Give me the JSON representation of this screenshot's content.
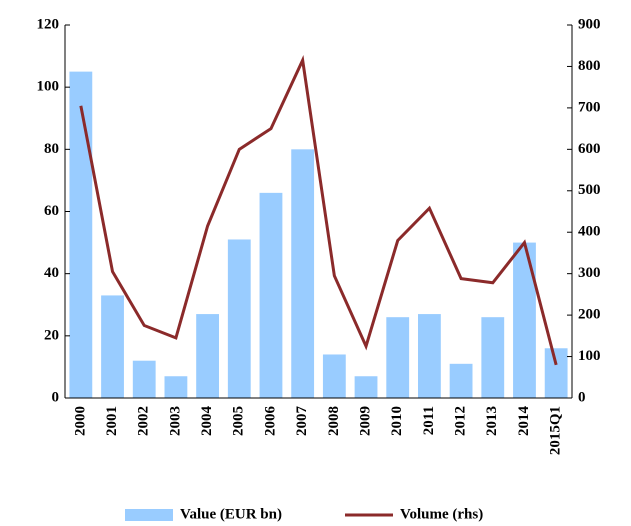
{
  "chart_data": {
    "type": "bar",
    "categories": [
      "2000",
      "2001",
      "2002",
      "2003",
      "2004",
      "2005",
      "2006",
      "2007",
      "2008",
      "2009",
      "2010",
      "2011",
      "2012",
      "2013",
      "2014",
      "2015Q1"
    ],
    "series": [
      {
        "name": "Value (EUR bn)",
        "type": "bar",
        "color": "#99ccff",
        "values": [
          105,
          33,
          12,
          7,
          27,
          51,
          66,
          80,
          14,
          7,
          26,
          27,
          11,
          26,
          50,
          16
        ]
      },
      {
        "name": "Volume (rhs)",
        "type": "line",
        "axis": "y2",
        "color": "#8b2a2a",
        "values": [
          705,
          305,
          175,
          145,
          415,
          600,
          650,
          815,
          295,
          125,
          380,
          458,
          288,
          278,
          375,
          80
        ]
      }
    ],
    "ylim": [
      0,
      120
    ],
    "yticks": [
      0,
      20,
      40,
      60,
      80,
      100,
      120
    ],
    "y2lim": [
      0,
      900
    ],
    "y2ticks": [
      0,
      100,
      200,
      300,
      400,
      500,
      600,
      700,
      800,
      900
    ],
    "legend": "bottom"
  }
}
